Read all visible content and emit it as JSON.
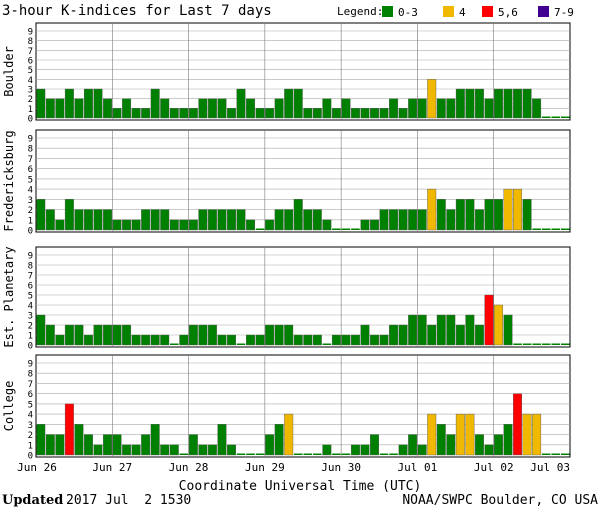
{
  "chart_data": {
    "type": "bar",
    "title": "3-hour K-indices for Last 7 days",
    "xlabel": "Coordinate Universal Time (UTC)",
    "ylim": [
      0,
      9
    ],
    "yticks": [
      "0",
      "1",
      "2",
      "3",
      "4",
      "5",
      "6",
      "7",
      "8",
      "9"
    ],
    "x_tick_labels": [
      "Jun 26",
      "Jun 27",
      "Jun 28",
      "Jun 29",
      "Jun 30",
      "Jul 01",
      "Jul 02",
      "Jul 03"
    ],
    "legend": {
      "title": "Legend:",
      "items": [
        {
          "label": "0-3",
          "color": "#008000"
        },
        {
          "label": "4",
          "color": "#f0b800"
        },
        {
          "label": "5,6",
          "color": "#ff0000"
        },
        {
          "label": "7-9",
          "color": "#400090"
        }
      ]
    },
    "series": [
      {
        "name": "Boulder",
        "values": [
          3,
          2,
          2,
          3,
          2,
          3,
          3,
          2,
          1,
          2,
          1,
          1,
          3,
          2,
          1,
          1,
          1,
          2,
          2,
          2,
          1,
          3,
          2,
          1,
          1,
          2,
          3,
          3,
          1,
          1,
          2,
          1,
          2,
          1,
          1,
          1,
          1,
          2,
          1,
          2,
          2,
          4,
          2,
          2,
          3,
          3,
          3,
          2,
          3,
          3,
          3,
          3,
          2,
          0,
          0,
          0
        ]
      },
      {
        "name": "Fredericksburg",
        "values": [
          3,
          2,
          1,
          3,
          2,
          2,
          2,
          2,
          1,
          1,
          1,
          2,
          2,
          2,
          1,
          1,
          1,
          2,
          2,
          2,
          2,
          2,
          1,
          0,
          1,
          2,
          2,
          3,
          2,
          2,
          1,
          0,
          0,
          0,
          1,
          1,
          2,
          2,
          2,
          2,
          2,
          4,
          3,
          2,
          3,
          3,
          2,
          3,
          3,
          4,
          4,
          3,
          0,
          0,
          0,
          0
        ]
      },
      {
        "name": "Est. Planetary",
        "values": [
          3,
          2,
          1,
          2,
          2,
          1,
          2,
          2,
          2,
          2,
          1,
          1,
          1,
          1,
          0,
          1,
          2,
          2,
          2,
          1,
          1,
          0,
          1,
          1,
          2,
          2,
          2,
          1,
          1,
          1,
          0,
          1,
          1,
          1,
          2,
          1,
          1,
          2,
          2,
          3,
          3,
          2,
          3,
          3,
          2,
          3,
          2,
          5,
          4,
          3,
          0,
          0,
          0,
          0,
          0,
          0
        ]
      },
      {
        "name": "College",
        "values": [
          3,
          2,
          2,
          5,
          3,
          2,
          1,
          2,
          2,
          1,
          1,
          2,
          3,
          1,
          1,
          0,
          2,
          1,
          1,
          3,
          1,
          0,
          0,
          0,
          2,
          3,
          4,
          0,
          0,
          0,
          1,
          0,
          0,
          1,
          1,
          2,
          0,
          0,
          1,
          2,
          1,
          4,
          3,
          2,
          4,
          4,
          2,
          1,
          2,
          3,
          6,
          4,
          4,
          0,
          0,
          0
        ]
      }
    ]
  },
  "footer": {
    "updated_label": "Updated",
    "updated_value": "2017 Jul  2 1530",
    "credit": "NOAA/SWPC Boulder, CO USA"
  }
}
